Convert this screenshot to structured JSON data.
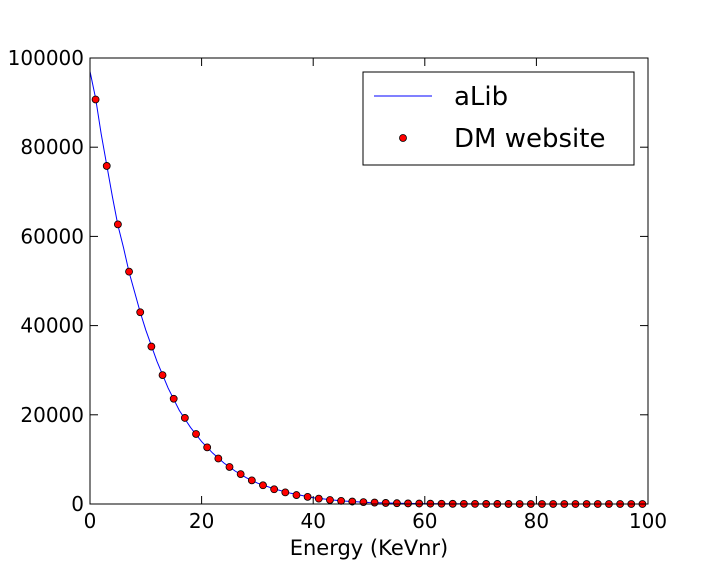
{
  "chart_data": {
    "type": "line",
    "xlabel": "Energy (KeVnr)",
    "ylabel": "",
    "xlim": [
      0,
      100
    ],
    "ylim": [
      0,
      100000
    ],
    "xticks": [
      "0",
      "20",
      "40",
      "60",
      "80",
      "100"
    ],
    "yticks": [
      "0",
      "20000",
      "40000",
      "60000",
      "80000",
      "100000"
    ],
    "grid": false,
    "legend_position": "top-right",
    "series": [
      {
        "name": "aLib",
        "style": "line",
        "color": "#0000ff",
        "x": [
          0,
          1,
          2,
          3,
          4,
          5,
          6,
          7,
          8,
          9,
          10,
          12,
          14,
          16,
          18,
          20,
          22,
          24,
          26,
          28,
          30,
          33,
          36,
          40,
          45,
          50,
          55,
          60,
          70,
          80,
          90,
          100
        ],
        "y": [
          97000,
          91000,
          83000,
          76000,
          69000,
          62500,
          57500,
          52000,
          47500,
          43000,
          39000,
          32000,
          26000,
          21000,
          17200,
          14000,
          11400,
          9200,
          7400,
          5900,
          4700,
          3400,
          2400,
          1400,
          700,
          350,
          170,
          80,
          20,
          5,
          1,
          0
        ]
      },
      {
        "name": "DM website",
        "style": "markers",
        "color": "#ff0000",
        "x": [
          1,
          3,
          5,
          7,
          9,
          11,
          13,
          15,
          17,
          19,
          21,
          23,
          25,
          27,
          29,
          31,
          33,
          35,
          37,
          39,
          41,
          43,
          45,
          47,
          49,
          51,
          53,
          55,
          57,
          59,
          61,
          63,
          65,
          67,
          69,
          71,
          73,
          75,
          77,
          79,
          81,
          83,
          85,
          87,
          89,
          91,
          93,
          95,
          97,
          99
        ],
        "y": [
          90700,
          75800,
          62700,
          52100,
          43000,
          35300,
          28900,
          23600,
          19300,
          15700,
          12700,
          10200,
          8300,
          6700,
          5300,
          4200,
          3300,
          2600,
          2000,
          1600,
          1200,
          900,
          700,
          550,
          420,
          320,
          240,
          180,
          130,
          100,
          75,
          55,
          40,
          30,
          20,
          15,
          10,
          8,
          5,
          4,
          3,
          2,
          1,
          1,
          0,
          0,
          0,
          0,
          0,
          0
        ]
      }
    ]
  }
}
